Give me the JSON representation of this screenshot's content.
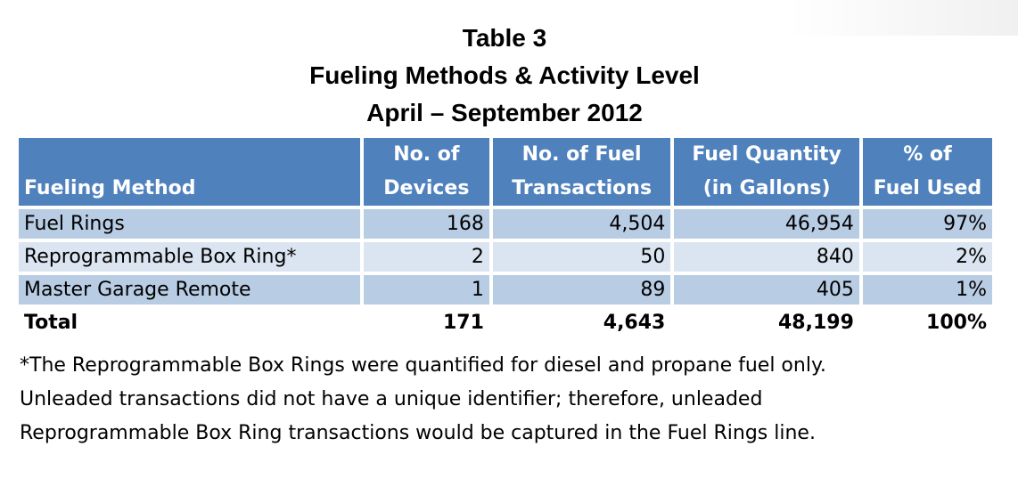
{
  "title": {
    "line1": "Table 3",
    "line2": "Fueling Methods & Activity Level",
    "line3": "April – September 2012"
  },
  "table": {
    "headers": [
      {
        "line1": "",
        "line2": "Fueling Method"
      },
      {
        "line1": "No. of",
        "line2": "Devices"
      },
      {
        "line1": "No. of Fuel",
        "line2": "Transactions"
      },
      {
        "line1": "Fuel Quantity",
        "line2": "(in Gallons)"
      },
      {
        "line1": "% of",
        "line2": "Fuel Used"
      }
    ],
    "rows": [
      [
        "Fuel Rings",
        "168",
        "4,504",
        "46,954",
        "97%"
      ],
      [
        "Reprogrammable Box Ring*",
        "2",
        "50",
        "840",
        "2%"
      ],
      [
        "Master Garage Remote",
        "1",
        "89",
        "405",
        "1%"
      ]
    ],
    "total": [
      "Total",
      "171",
      "4,643",
      "48,199",
      "100%"
    ]
  },
  "footnote": {
    "line1": "*The Reprogrammable Box Rings were quantified for diesel and propane fuel only.",
    "line2": "Unleaded transactions did not have a unique identifier; therefore, unleaded",
    "line3": "Reprogrammable Box Ring transactions would be captured in the Fuel Rings line."
  },
  "colors": {
    "header_bg": "#4f81bd",
    "row_dark": "#b8cce4",
    "row_light": "#dbe5f1"
  }
}
